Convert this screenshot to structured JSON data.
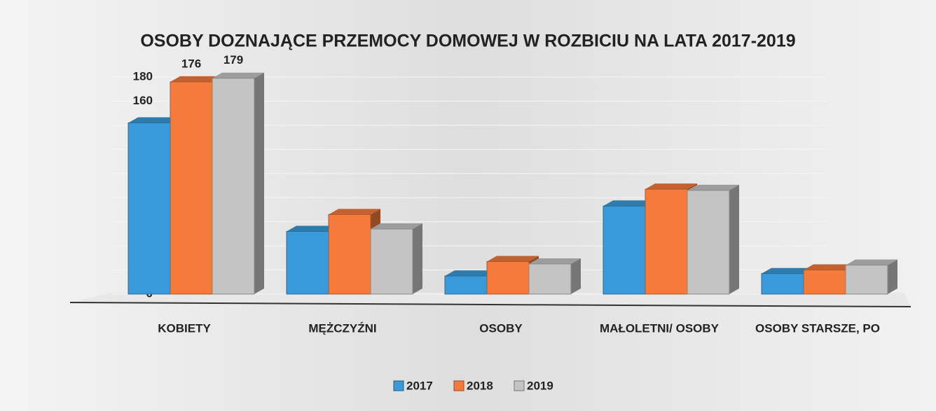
{
  "chart_data": {
    "type": "bar",
    "title": "OSOBY DOZNAJĄCE  PRZEMOCY DOMOWEJ W ROZBICIU NA LATA 2017-2019",
    "categories": [
      "KOBIETY",
      "MĘŻCZYŹNI",
      "OSOBY",
      "MAŁOLETNI/ OSOBY",
      "OSOBY STARSZE, PO"
    ],
    "series": [
      {
        "name": "2017",
        "color": "#3a9ad9",
        "values": [
          142,
          52,
          15,
          73,
          17
        ]
      },
      {
        "name": "2018",
        "color": "#f47b3c",
        "values": [
          176,
          66,
          27,
          87,
          20
        ],
        "value_labels": [
          "176",
          null,
          null,
          null,
          null
        ]
      },
      {
        "name": "2019",
        "color": "#c4c4c4",
        "values": [
          179,
          54,
          25,
          86,
          24
        ],
        "value_labels": [
          "179",
          null,
          null,
          null,
          null
        ]
      }
    ],
    "ylim": [
      0,
      180
    ],
    "yticks": [
      0,
      20,
      40,
      60,
      80,
      100,
      120,
      140,
      160,
      180
    ],
    "grid": true,
    "legend": "bottom"
  }
}
